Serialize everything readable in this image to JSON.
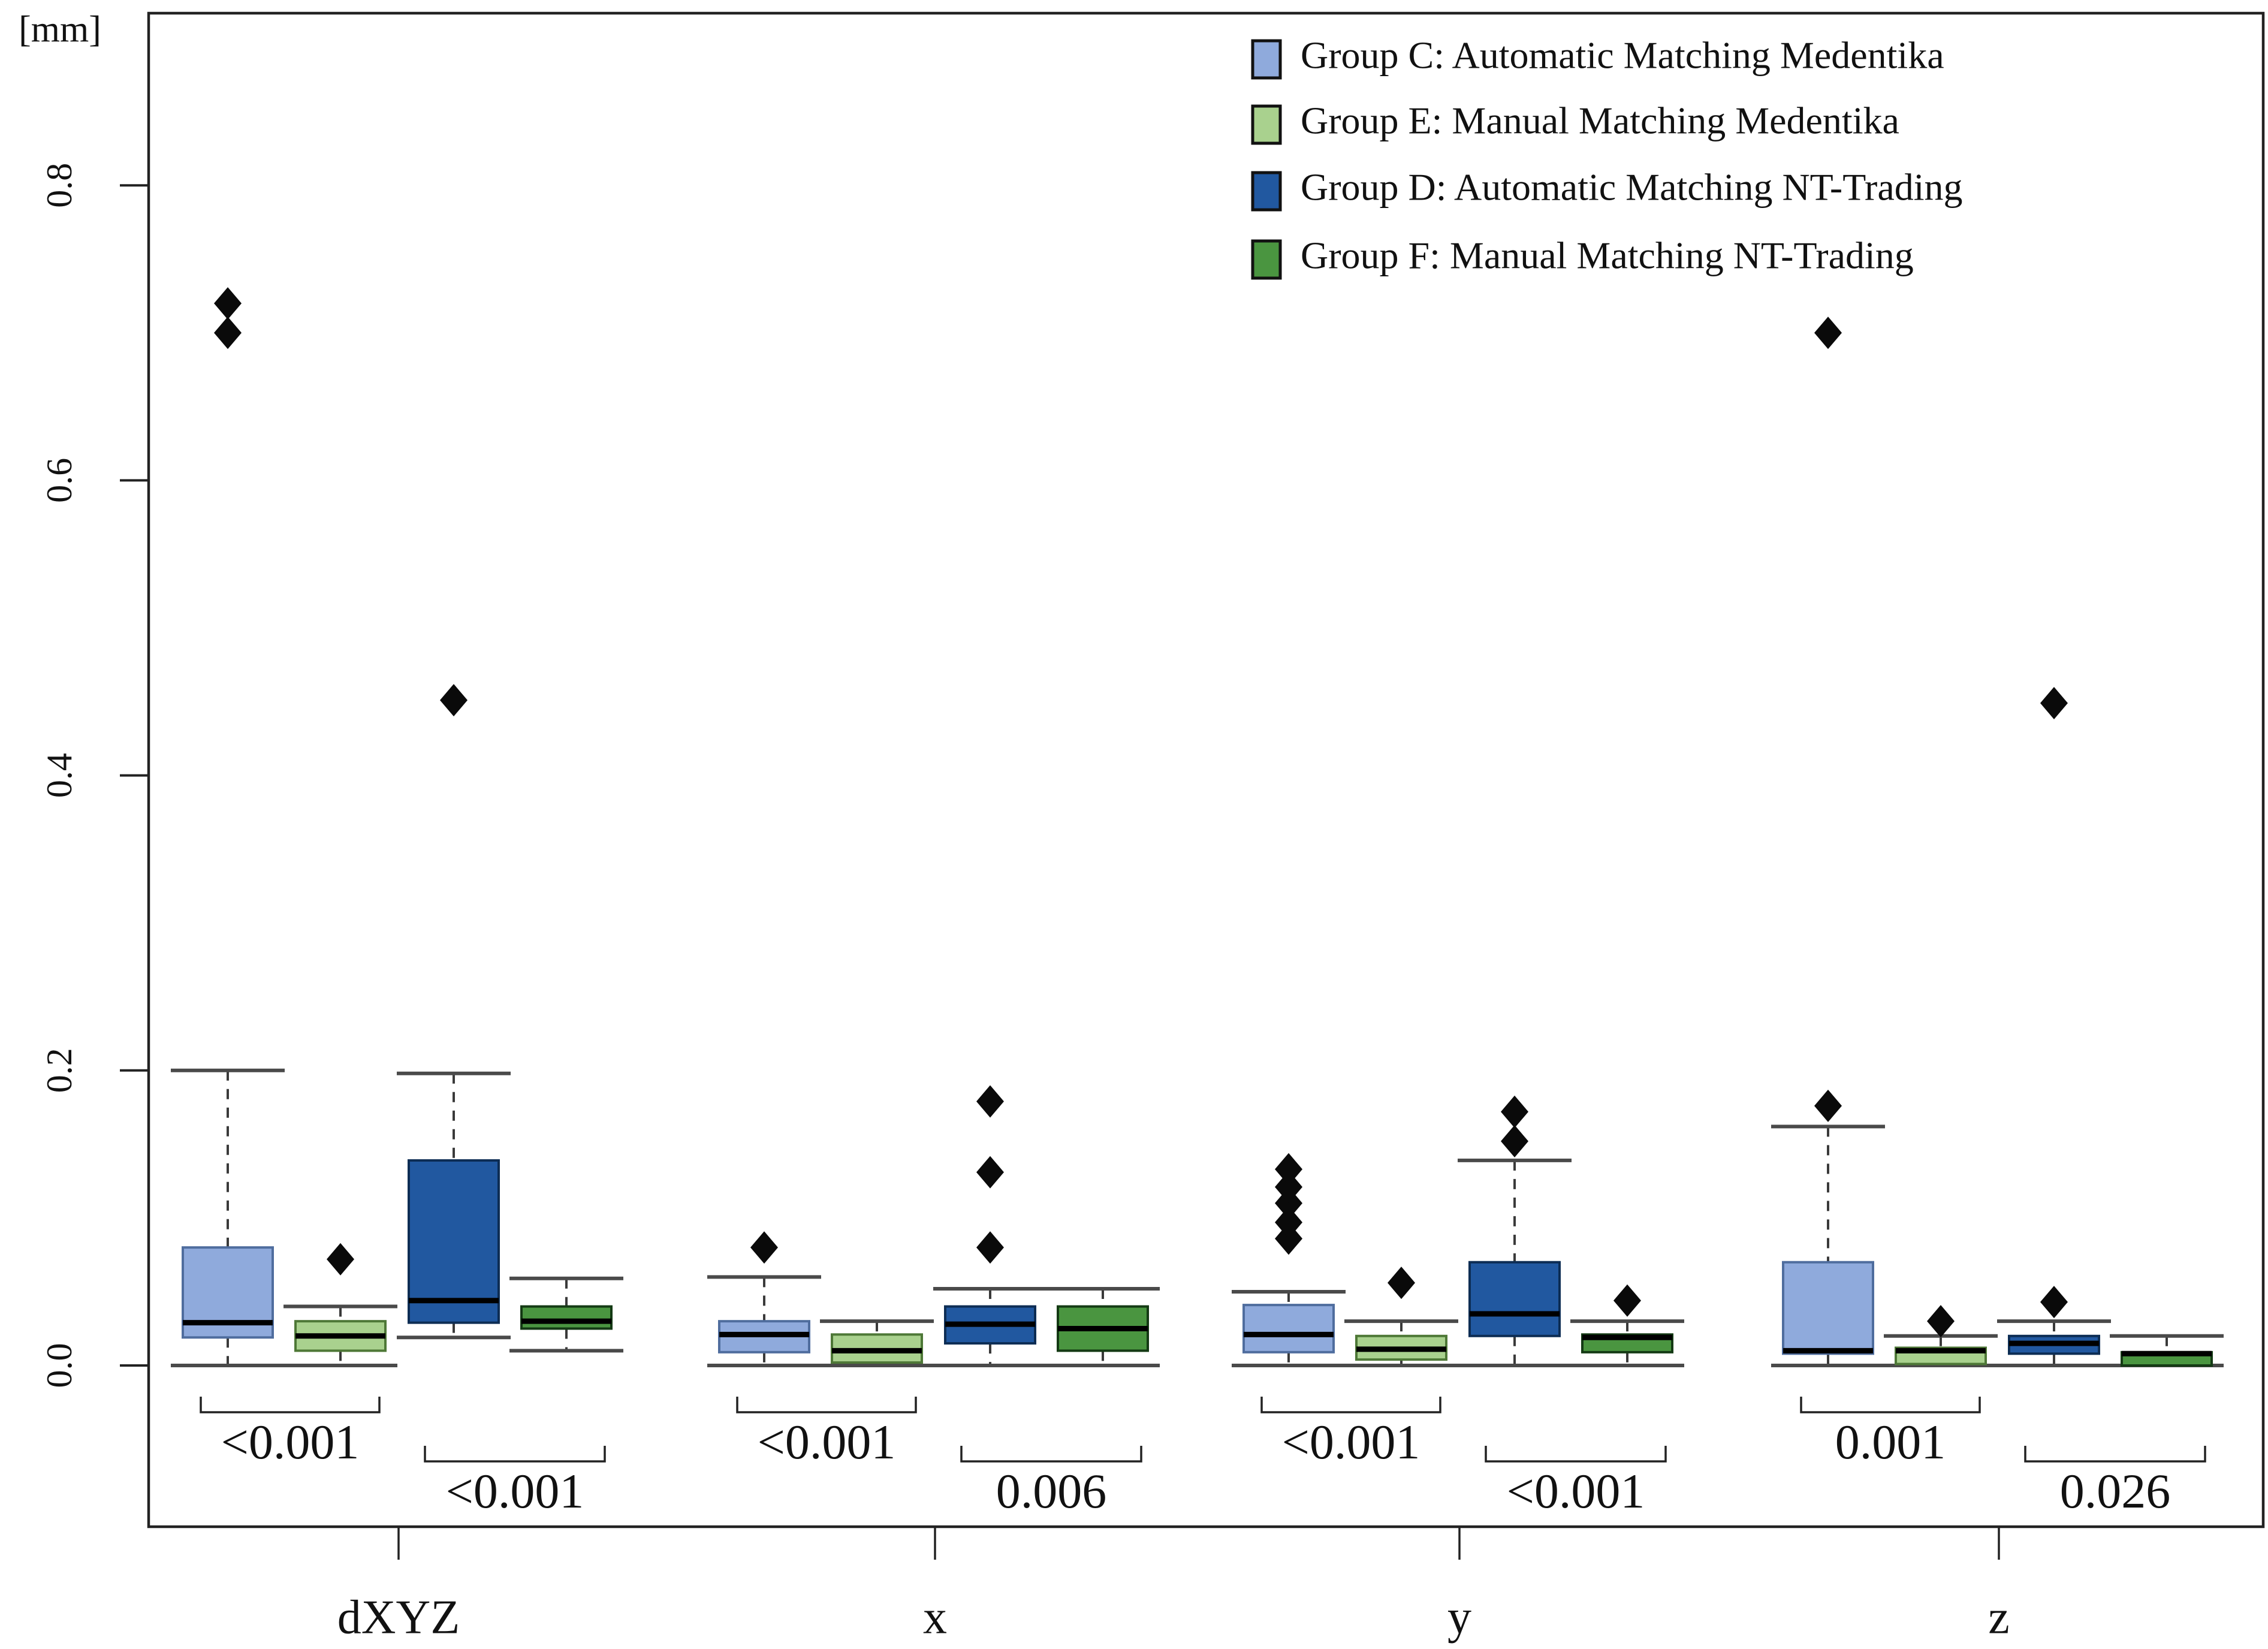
{
  "figure": {
    "unit_label": "[mm]",
    "accent_black": "#111111"
  },
  "legend": {
    "items": [
      {
        "key": "C",
        "label": "Group C: Automatic Matching Medentika",
        "fill": "#8FAADC",
        "border": "#111111"
      },
      {
        "key": "E",
        "label": "Group E: Manual Matching Medentika",
        "fill": "#A9D18E",
        "border": "#111111"
      },
      {
        "key": "D",
        "label": "Group D: Automatic Matching NT-Trading",
        "fill": "#2158A0",
        "border": "#111111"
      },
      {
        "key": "F",
        "label": "Group F: Manual Matching NT-Trading",
        "fill": "#4A9540",
        "border": "#111111"
      }
    ]
  },
  "chart_data": {
    "type": "boxplot",
    "title": "",
    "xlabel": "",
    "ylabel": "[mm]",
    "ylim": [
      -0.11,
      0.92
    ],
    "yticks": [
      {
        "value": 0.0,
        "label": "0.0"
      },
      {
        "value": 0.2,
        "label": "0.2"
      },
      {
        "value": 0.4,
        "label": "0.4"
      },
      {
        "value": 0.6,
        "label": "0.6"
      },
      {
        "value": 0.8,
        "label": "0.8"
      }
    ],
    "grid": false,
    "legend_position": "top-right",
    "categories": [
      "dXYZ",
      "x",
      "y",
      "z"
    ],
    "series": [
      {
        "name": "Group C: Automatic Matching Medentika",
        "fill": "#8FAADC",
        "border": "#4F6D9E",
        "boxes": [
          {
            "category": "dXYZ",
            "whisker_low": 0.0,
            "q1": 0.019,
            "median": 0.029,
            "q3": 0.08,
            "whisker_high": 0.2,
            "outliers": [
              0.7,
              0.72
            ]
          },
          {
            "category": "x",
            "whisker_low": 0.0,
            "q1": 0.009,
            "median": 0.021,
            "q3": 0.03,
            "whisker_high": 0.06,
            "outliers": [
              0.08
            ]
          },
          {
            "category": "y",
            "whisker_low": 0.0,
            "q1": 0.009,
            "median": 0.021,
            "q3": 0.041,
            "whisker_high": 0.05,
            "outliers": [
              0.086,
              0.097,
              0.11,
              0.121,
              0.133
            ]
          },
          {
            "category": "z",
            "whisker_low": 0.0,
            "q1": 0.008,
            "median": 0.01,
            "q3": 0.07,
            "whisker_high": 0.162,
            "outliers": [
              0.176,
              0.7
            ]
          }
        ]
      },
      {
        "name": "Group E: Manual Matching Medentika",
        "fill": "#A9D18E",
        "border": "#4E7837",
        "boxes": [
          {
            "category": "dXYZ",
            "whisker_low": 0.0,
            "q1": 0.01,
            "median": 0.02,
            "q3": 0.03,
            "whisker_high": 0.04,
            "outliers": [
              0.072
            ]
          },
          {
            "category": "x",
            "whisker_low": 0.0,
            "q1": 0.002,
            "median": 0.01,
            "q3": 0.021,
            "whisker_high": 0.03,
            "outliers": []
          },
          {
            "category": "y",
            "whisker_low": 0.0,
            "q1": 0.004,
            "median": 0.011,
            "q3": 0.02,
            "whisker_high": 0.03,
            "outliers": [
              0.056
            ]
          },
          {
            "category": "z",
            "whisker_low": 0.0,
            "q1": 0.001,
            "median": 0.01,
            "q3": 0.012,
            "whisker_high": 0.02,
            "outliers": [
              0.03
            ]
          }
        ]
      },
      {
        "name": "Group D: Automatic Matching NT-Trading",
        "fill": "#2158A0",
        "border": "#0D2D54",
        "boxes": [
          {
            "category": "dXYZ",
            "whisker_low": 0.019,
            "q1": 0.029,
            "median": 0.044,
            "q3": 0.139,
            "whisker_high": 0.198,
            "outliers": [
              0.451
            ]
          },
          {
            "category": "x",
            "whisker_low": 0.0,
            "q1": 0.015,
            "median": 0.028,
            "q3": 0.04,
            "whisker_high": 0.052,
            "outliers": [
              0.08,
              0.131,
              0.179
            ]
          },
          {
            "category": "y",
            "whisker_low": 0.0,
            "q1": 0.02,
            "median": 0.035,
            "q3": 0.07,
            "whisker_high": 0.139,
            "outliers": [
              0.152,
              0.172
            ]
          },
          {
            "category": "z",
            "whisker_low": 0.0,
            "q1": 0.008,
            "median": 0.015,
            "q3": 0.02,
            "whisker_high": 0.03,
            "outliers": [
              0.043,
              0.449
            ]
          }
        ]
      },
      {
        "name": "Group F: Manual Matching NT-Trading",
        "fill": "#4A9540",
        "border": "#143A14",
        "boxes": [
          {
            "category": "dXYZ",
            "whisker_low": 0.01,
            "q1": 0.025,
            "median": 0.03,
            "q3": 0.04,
            "whisker_high": 0.059,
            "outliers": []
          },
          {
            "category": "x",
            "whisker_low": 0.0,
            "q1": 0.01,
            "median": 0.025,
            "q3": 0.04,
            "whisker_high": 0.052,
            "outliers": []
          },
          {
            "category": "y",
            "whisker_low": 0.0,
            "q1": 0.009,
            "median": 0.019,
            "q3": 0.021,
            "whisker_high": 0.03,
            "outliers": [
              0.044
            ]
          },
          {
            "category": "z",
            "whisker_low": 0.0,
            "q1": 0.0,
            "median": 0.008,
            "q3": 0.009,
            "whisker_high": 0.02,
            "outliers": []
          }
        ]
      }
    ],
    "p_values": [
      {
        "category": "dXYZ",
        "C_vs_E": "<0.001",
        "D_vs_F": "<0.001"
      },
      {
        "category": "x",
        "C_vs_E": "<0.001",
        "D_vs_F": "0.006"
      },
      {
        "category": "y",
        "C_vs_E": "<0.001",
        "D_vs_F": "<0.001"
      },
      {
        "category": "z",
        "C_vs_E": "0.001",
        "D_vs_F": "0.026"
      }
    ]
  }
}
